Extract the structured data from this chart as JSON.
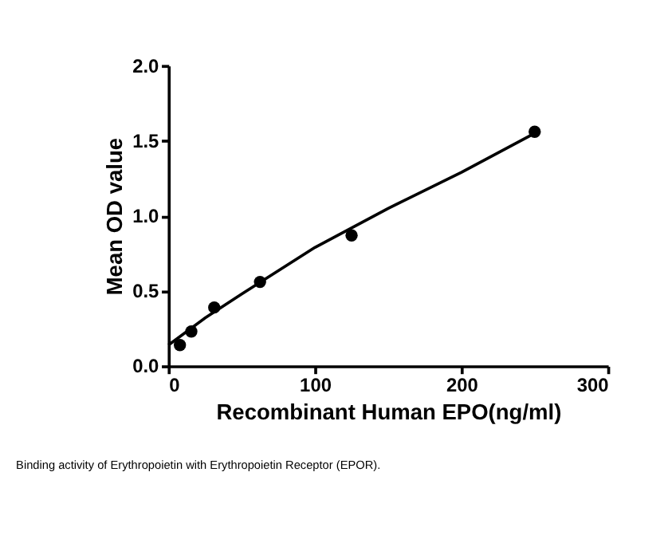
{
  "chart_data": {
    "type": "scatter",
    "xlabel": "Recombinant Human EPO(ng/ml)",
    "ylabel": "Mean OD value",
    "xlim": [
      0,
      300
    ],
    "xticks": [
      0,
      100,
      200,
      300
    ],
    "ylim": [
      0,
      2.0
    ],
    "yticks": [
      {
        "value": 0,
        "label": "0.0"
      },
      {
        "value": 0.5,
        "label": "0.5"
      },
      {
        "value": 1.0,
        "label": "1.0"
      },
      {
        "value": 1.5,
        "label": "1.5"
      },
      {
        "value": 2.0,
        "label": "2.0"
      }
    ],
    "marker": "circle",
    "series": [
      {
        "color": "#000000",
        "x": [
          7.8,
          15.6,
          31.25,
          62.5,
          125,
          250
        ],
        "values": [
          0.14,
          0.23,
          0.39,
          0.56,
          0.87,
          1.56
        ]
      },
      {
        "type": "line",
        "color": "#000000",
        "x": [
          0,
          25,
          50,
          100,
          150,
          200,
          250
        ],
        "values": [
          0.14,
          0.32,
          0.48,
          0.79,
          1.05,
          1.29,
          1.55
        ],
        "line_style": "solid",
        "marker": "none"
      }
    ],
    "grid": false,
    "annotations": [
      "Binding activity of Erythropoietin with Erythropoietin Receptor (EPOR)."
    ]
  }
}
